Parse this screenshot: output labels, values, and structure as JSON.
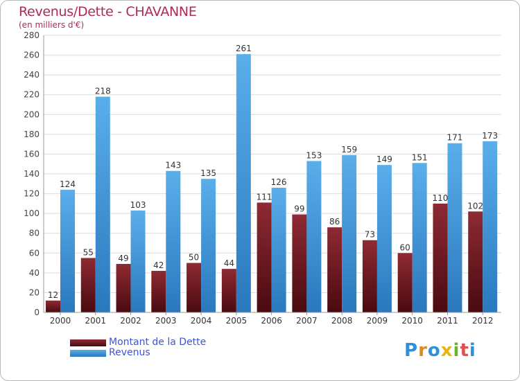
{
  "title": "Revenus/Dette - CHAVANNE",
  "subtitle": "(en milliers d'€)",
  "legend": {
    "dette_label": "Montant de la Dette",
    "revenus_label": "Revenus"
  },
  "logo": {
    "text": "Proxiti"
  },
  "colors": {
    "dette": "#7a1a22",
    "revenus": "#4ea3e2",
    "title": "#b1275e",
    "legend_text": "#3b54d8",
    "grid": "#dcdcdc"
  },
  "chart_data": {
    "type": "bar",
    "title": "Revenus/Dette - CHAVANNE",
    "ylabel": "(en milliers d'€)",
    "xlabel": "",
    "categories": [
      "2000",
      "2001",
      "2002",
      "2003",
      "2004",
      "2005",
      "2006",
      "2007",
      "2008",
      "2009",
      "2010",
      "2011",
      "2012"
    ],
    "ylim": [
      0,
      280
    ],
    "yticks": [
      0,
      20,
      40,
      60,
      80,
      100,
      120,
      140,
      160,
      180,
      200,
      220,
      240,
      260,
      280
    ],
    "grid": true,
    "legend_position": "bottom-left",
    "series": [
      {
        "name": "Montant de la Dette",
        "values": [
          12,
          55,
          49,
          42,
          50,
          44,
          111,
          99,
          86,
          73,
          60,
          110,
          102
        ]
      },
      {
        "name": "Revenus",
        "values": [
          124,
          218,
          103,
          143,
          135,
          261,
          126,
          153,
          159,
          149,
          151,
          171,
          173
        ]
      }
    ]
  }
}
